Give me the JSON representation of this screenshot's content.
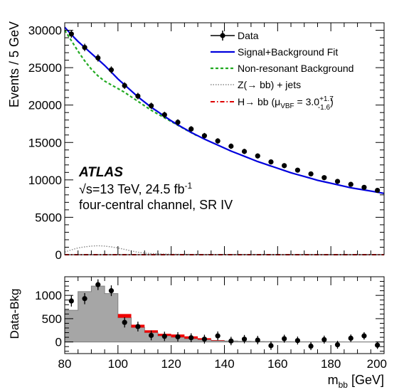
{
  "chart_data": [
    {
      "panel": "main",
      "type": "line",
      "title": "",
      "xlabel": "",
      "ylabel": "Events / 5 GeV",
      "xlim": [
        80,
        200
      ],
      "ylim": [
        0,
        31000
      ],
      "y_ticks": [
        0,
        5000,
        10000,
        15000,
        20000,
        25000,
        30000
      ],
      "y_tick_labels": [
        "0",
        "5000",
        "10000",
        "15000",
        "20000",
        "25000",
        "30000"
      ],
      "grid": false,
      "legend_position": "top-right",
      "legend": [
        {
          "key": "data",
          "label": "Data",
          "style": "marker"
        },
        {
          "key": "fit",
          "label": "Signal+Background Fit",
          "style": "line",
          "color": "#0000dd"
        },
        {
          "key": "nonres",
          "label": "Non-resonant Background",
          "style": "dashed",
          "color": "#22aa22"
        },
        {
          "key": "zjets",
          "label_main": "Z(→ bb) + jets",
          "style": "dotted",
          "color": "#888888"
        },
        {
          "key": "higgs",
          "label_main": "H→ bb (μ",
          "label_sub": "VBF",
          "label_eq": " =  3.0",
          "label_sup": "+1.7",
          "label_sub2": "-1.6",
          "label_close": ")",
          "style": "dashdot",
          "color": "#dd0000"
        }
      ],
      "annotations": {
        "experiment": "ATLAS",
        "energy_prefix": "√s=13 TeV, 24.5 fb",
        "energy_sup": "-1",
        "channel": "four-central channel, SR IV"
      },
      "series": [
        {
          "name": "Data",
          "type": "scatter",
          "x": [
            82.5,
            87.5,
            92.5,
            97.5,
            102.5,
            107.5,
            112.5,
            117.5,
            122.5,
            127.5,
            132.5,
            137.5,
            142.5,
            147.5,
            152.5,
            157.5,
            162.5,
            167.5,
            172.5,
            177.5,
            182.5,
            187.5,
            192.5,
            197.5
          ],
          "y": [
            29500,
            27700,
            26300,
            24700,
            22600,
            21200,
            19900,
            18700,
            17700,
            16800,
            15900,
            15200,
            14500,
            13800,
            13200,
            12400,
            11900,
            11300,
            10800,
            10300,
            9800,
            9400,
            9000,
            8600
          ]
        },
        {
          "name": "Signal+Background Fit",
          "type": "line",
          "x": [
            80,
            82.5,
            85,
            87.5,
            90,
            92.5,
            95,
            97.5,
            100,
            102.5,
            105,
            107.5,
            110,
            112.5,
            115,
            117.5,
            120,
            122.5,
            125,
            127.5,
            130,
            132.5,
            135,
            137.5,
            140,
            142.5,
            145,
            147.5,
            150,
            152.5,
            155,
            157.5,
            160,
            162.5,
            165,
            167.5,
            170,
            172.5,
            175,
            177.5,
            180,
            182.5,
            185,
            187.5,
            190,
            192.5,
            195,
            197.5,
            200
          ],
          "y": [
            30400,
            29400,
            28500,
            27700,
            26900,
            26100,
            25300,
            24400,
            23500,
            22700,
            21900,
            21100,
            20400,
            19700,
            19100,
            18500,
            17900,
            17350,
            16850,
            16350,
            15900,
            15450,
            15050,
            14650,
            14250,
            13850,
            13500,
            13150,
            12800,
            12450,
            12150,
            11850,
            11550,
            11250,
            10950,
            10700,
            10450,
            10200,
            9950,
            9750,
            9550,
            9350,
            9150,
            8950,
            8800,
            8650,
            8500,
            8350,
            8200
          ]
        },
        {
          "name": "Non-resonant Background",
          "type": "line",
          "x": [
            80,
            82.5,
            85,
            87.5,
            90,
            92.5,
            95,
            97.5,
            100,
            102.5,
            105,
            107.5,
            110,
            112.5,
            115,
            117.5,
            120,
            125,
            130
          ],
          "y": [
            30000,
            28600,
            27200,
            25900,
            24800,
            23900,
            23200,
            22700,
            22200,
            21700,
            21100,
            20500,
            19900,
            19300,
            18800,
            18300,
            17800,
            16800,
            15850
          ]
        },
        {
          "name": "Z(→ bb) + jets",
          "type": "line",
          "x": [
            80,
            82.5,
            85,
            87.5,
            90,
            92.5,
            95,
            97.5,
            100,
            102.5,
            105,
            107.5,
            110,
            112.5,
            115,
            117.5,
            120,
            125,
            130,
            140,
            150,
            160,
            170,
            180,
            190,
            200
          ],
          "y": [
            350,
            650,
            900,
            1050,
            1150,
            1200,
            1150,
            1050,
            900,
            700,
            500,
            330,
            220,
            150,
            110,
            80,
            60,
            40,
            30,
            20,
            15,
            10,
            8,
            6,
            5,
            4
          ]
        },
        {
          "name": "H→ bb",
          "type": "line",
          "x": [
            80,
            200
          ],
          "y": [
            0,
            0
          ]
        }
      ]
    },
    {
      "panel": "ratio",
      "type": "bar",
      "title": "",
      "xlabel_main": "m",
      "xlabel_sub": "bb",
      "xlabel_unit": " [GeV]",
      "ylabel": "Data-Bkg",
      "xlim": [
        80,
        200
      ],
      "ylim": [
        -250,
        1400
      ],
      "x_ticks": [
        80,
        100,
        120,
        140,
        160,
        180,
        200
      ],
      "x_tick_labels": [
        "80",
        "100",
        "120",
        "140",
        "160",
        "180",
        "200"
      ],
      "y_ticks": [
        0,
        500,
        1000
      ],
      "y_tick_labels": [
        "0",
        "500",
        "1000"
      ],
      "bin_edges": [
        80,
        85,
        90,
        95,
        100,
        105,
        110,
        115,
        120,
        125,
        130,
        135,
        140,
        145,
        150,
        155,
        160,
        165,
        170,
        175,
        180,
        185,
        190,
        195,
        200
      ],
      "z_jets_hist": [
        680,
        1080,
        1200,
        1040,
        520,
        310,
        200,
        130,
        100,
        70,
        50,
        30,
        20,
        15,
        10,
        8,
        5,
        4,
        3,
        2,
        2,
        1,
        1,
        1
      ],
      "higgs_hist": [
        0,
        0,
        0,
        0,
        80,
        60,
        50,
        45,
        60,
        50,
        30,
        10,
        0,
        0,
        0,
        0,
        0,
        0,
        0,
        0,
        0,
        0,
        0,
        0
      ],
      "data_x": [
        82.5,
        87.5,
        92.5,
        97.5,
        102.5,
        107.5,
        112.5,
        117.5,
        122.5,
        127.5,
        132.5,
        137.5,
        142.5,
        147.5,
        152.5,
        157.5,
        162.5,
        167.5,
        172.5,
        177.5,
        182.5,
        187.5,
        192.5,
        197.5
      ],
      "data_y": [
        880,
        930,
        1230,
        1100,
        420,
        330,
        140,
        120,
        110,
        90,
        60,
        130,
        20,
        60,
        40,
        -80,
        70,
        30,
        -90,
        50,
        -60,
        80,
        130,
        -70
      ],
      "data_err": [
        120,
        120,
        115,
        115,
        110,
        105,
        105,
        100,
        100,
        95,
        95,
        95,
        90,
        90,
        90,
        90,
        85,
        85,
        85,
        85,
        85,
        80,
        80,
        80
      ],
      "colors": {
        "z_fill": "#a6a6a6",
        "z_edge": "#808080",
        "higgs": "#ee0000",
        "fit": "#0000dd",
        "nonres": "#22aa22",
        "zline": "#888888",
        "hline": "#dd0000"
      }
    }
  ]
}
